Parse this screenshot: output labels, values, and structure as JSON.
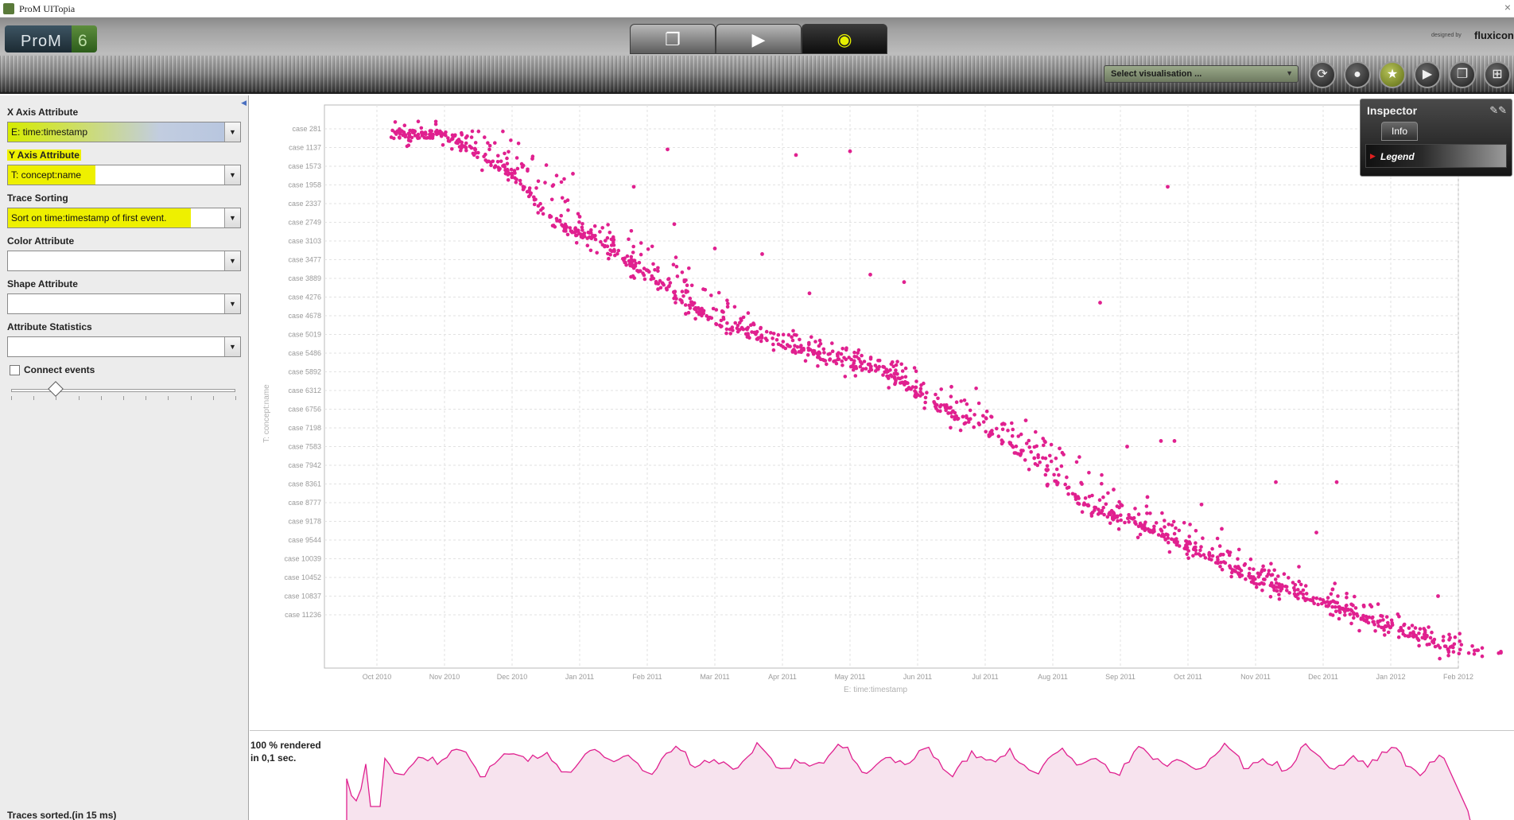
{
  "window": {
    "title": "ProM UITopia"
  },
  "header": {
    "logo_text": "ProM",
    "logo_version": "6",
    "subtitle": "",
    "designed_by": "designed by",
    "brand": "fluxicon",
    "view_tabs": [
      {
        "name": "workspace",
        "icon": "copy-icon",
        "glyph": "❐"
      },
      {
        "name": "actions",
        "icon": "play-icon",
        "glyph": "▶"
      },
      {
        "name": "views",
        "icon": "eye-icon",
        "glyph": "◉",
        "active": true
      }
    ],
    "visualisation_select": "Select visualisation ...",
    "action_buttons": [
      {
        "icon": "refresh-icon",
        "glyph": "⟳"
      },
      {
        "icon": "drop-icon",
        "glyph": "💧"
      },
      {
        "icon": "star-icon",
        "glyph": "★"
      },
      {
        "icon": "play-icon",
        "glyph": "▶"
      },
      {
        "icon": "copy-icon",
        "glyph": "❐"
      },
      {
        "icon": "grid-icon",
        "glyph": "⊞"
      }
    ]
  },
  "left_panel": {
    "x_axis_label": "X Axis Attribute",
    "x_axis_value": "E: time:timestamp",
    "y_axis_label": "Y Axis Attribute",
    "y_axis_value": "T: concept:name",
    "trace_sorting_label": "Trace Sorting",
    "trace_sorting_value": "Sort on time:timestamp of first event.",
    "color_label": "Color Attribute",
    "color_value": "",
    "shape_label": "Shape Attribute",
    "shape_value": "",
    "stats_label": "Attribute Statistics",
    "stats_value": "",
    "connect_events_label": "Connect events",
    "connect_events_checked": false,
    "slider_value": 0.2,
    "status": "Traces sorted.(in 15 ms)"
  },
  "inspector": {
    "title": "Inspector",
    "tab": "Info",
    "legend_label": "Legend"
  },
  "overview": {
    "rendered_line1": "100 % rendered",
    "rendered_line2": "in 0,1 sec."
  },
  "colors": {
    "dot": "#e0208f",
    "overview_line": "#e0208f",
    "overview_fill": "#f7e3ee",
    "highlight": "#eef000"
  },
  "chart_data": {
    "type": "scatter",
    "xlabel": "E: time:timestamp",
    "ylabel": "T: concept:name",
    "x_ticks": [
      "Oct 2010",
      "Nov 2010",
      "Dec 2010",
      "Jan 2011",
      "Feb 2011",
      "Mar 2011",
      "Apr 2011",
      "May 2011",
      "Jun 2011",
      "Jul 2011",
      "Aug 2011",
      "Sep 2011",
      "Oct 2011",
      "Nov 2011",
      "Dec 2011",
      "Jan 2012",
      "Feb 2012"
    ],
    "y_ticks": [
      "case 281",
      "case 1137",
      "case 1573",
      "case 1958",
      "case 2337",
      "case 2749",
      "case 3103",
      "case 3477",
      "case 3889",
      "case 4276",
      "case 4678",
      "case 5019",
      "case 5486",
      "case 5892",
      "case 6312",
      "case 6756",
      "case 7198",
      "case 7583",
      "case 7942",
      "case 8361",
      "case 8777",
      "case 9178",
      "case 9544",
      "case 10039",
      "case 10452",
      "case 10837",
      "case 11236"
    ],
    "grid": true,
    "main_trend": [
      [
        0.2,
        0.3
      ],
      [
        1.0,
        0.3
      ],
      [
        2.0,
        2.4
      ],
      [
        2.6,
        5.0
      ],
      [
        3.3,
        6.0
      ],
      [
        4.4,
        8.8
      ],
      [
        5.0,
        10.3
      ],
      [
        6.0,
        11.6
      ],
      [
        7.5,
        13.0
      ],
      [
        8.3,
        14.9
      ],
      [
        9.0,
        16.1
      ],
      [
        9.8,
        18.0
      ],
      [
        10.5,
        20.2
      ],
      [
        11.4,
        21.3
      ],
      [
        12.1,
        22.5
      ],
      [
        12.9,
        24.0
      ],
      [
        14.0,
        25.4
      ],
      [
        15.3,
        27.0
      ],
      [
        16.1,
        28.1
      ]
    ],
    "outliers": [
      [
        4.3,
        1.1
      ],
      [
        6.2,
        1.4
      ],
      [
        7.0,
        1.2
      ],
      [
        11.7,
        3.1
      ],
      [
        2.3,
        1.6
      ],
      [
        3.0,
        4.7
      ],
      [
        4.4,
        5.1
      ],
      [
        5.0,
        6.4
      ],
      [
        7.3,
        7.8
      ],
      [
        7.8,
        8.2
      ],
      [
        10.7,
        9.3
      ],
      [
        11.6,
        16.7
      ],
      [
        11.8,
        16.7
      ],
      [
        11.1,
        17.0
      ],
      [
        10.1,
        17.1
      ],
      [
        13.3,
        18.9
      ],
      [
        14.2,
        18.9
      ],
      [
        14.3,
        25.7
      ],
      [
        14.6,
        25.5
      ],
      [
        10.9,
        19.3
      ],
      [
        15.7,
        25.0
      ],
      [
        13.9,
        21.6
      ],
      [
        9.6,
        15.6
      ],
      [
        8.5,
        13.8
      ],
      [
        3.8,
        3.1
      ],
      [
        2.9,
        2.4
      ],
      [
        6.4,
        8.8
      ],
      [
        5.7,
        6.7
      ],
      [
        12.5,
        21.4
      ],
      [
        11.4,
        19.7
      ],
      [
        12.2,
        20.1
      ]
    ]
  }
}
